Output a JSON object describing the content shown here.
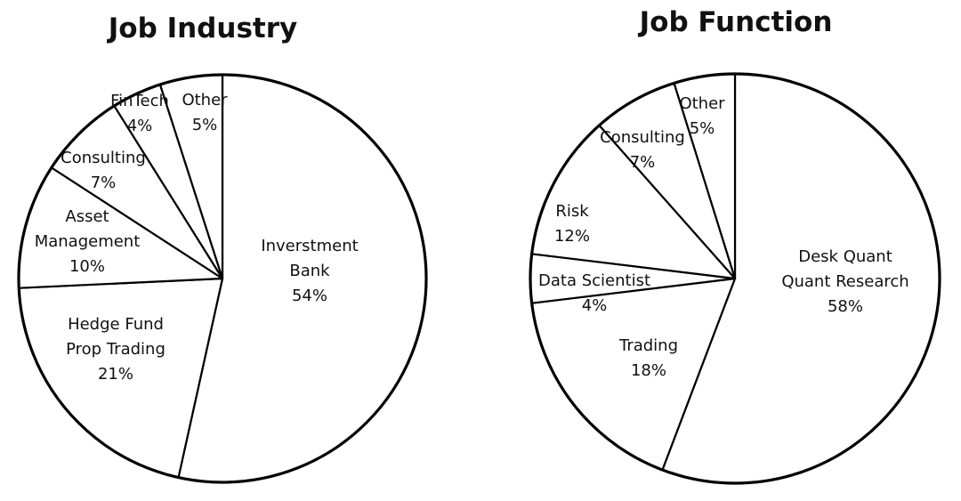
{
  "chart_data": [
    {
      "type": "pie",
      "title": "Job Industry",
      "start_angle_deg": 0,
      "direction": "clockwise",
      "colors": {
        "fill": "#ffffff",
        "stroke": "#000000"
      },
      "slices": [
        {
          "label_lines": [
            "Inverstment",
            "Bank"
          ],
          "value": 54,
          "value_label": "54%"
        },
        {
          "label_lines": [
            "Hedge Fund",
            "Prop Trading"
          ],
          "value": 21,
          "value_label": "21%"
        },
        {
          "label_lines": [
            "Asset",
            "Management"
          ],
          "value": 10,
          "value_label": "10%"
        },
        {
          "label_lines": [
            "Consulting"
          ],
          "value": 7,
          "value_label": "7%"
        },
        {
          "label_lines": [
            "FinTech"
          ],
          "value": 4,
          "value_label": "4%"
        },
        {
          "label_lines": [
            "Other"
          ],
          "value": 5,
          "value_label": "5%"
        }
      ]
    },
    {
      "type": "pie",
      "title": "Job Function",
      "start_angle_deg": 0,
      "direction": "clockwise",
      "colors": {
        "fill": "#ffffff",
        "stroke": "#000000"
      },
      "slices": [
        {
          "label_lines": [
            "Desk Quant",
            "Quant Research"
          ],
          "value": 58,
          "value_label": "58%"
        },
        {
          "label_lines": [
            "Trading"
          ],
          "value": 18,
          "value_label": "18%"
        },
        {
          "label_lines": [
            "Data Scientist"
          ],
          "value": 4,
          "value_label": "4%"
        },
        {
          "label_lines": [
            "Risk"
          ],
          "value": 12,
          "value_label": "12%"
        },
        {
          "label_lines": [
            "Consulting"
          ],
          "value": 7,
          "value_label": "7%"
        },
        {
          "label_lines": [
            "Other"
          ],
          "value": 5,
          "value_label": "5%"
        }
      ]
    }
  ]
}
